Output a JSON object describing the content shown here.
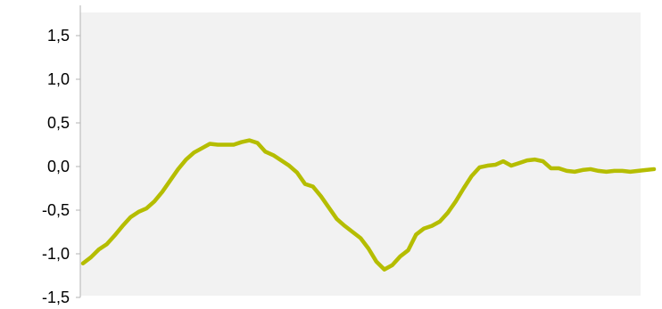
{
  "chart_data": {
    "type": "line",
    "title": "",
    "xlabel": "",
    "ylabel": "",
    "ylim": [
      -1.5,
      1.5
    ],
    "yticks": [
      -1.5,
      -1.0,
      -0.5,
      0.0,
      0.5,
      1.0,
      1.5
    ],
    "ytick_labels": [
      "-1,5",
      "-1,0",
      "-0,5",
      "0,0",
      "0,5",
      "1,0",
      "1,5"
    ],
    "grid": false,
    "legend": "none",
    "plot_background": "#f2f2f2",
    "series": [
      {
        "color": "#b5bd00",
        "x": [
          0,
          1,
          2,
          3,
          4,
          5,
          6,
          7,
          8,
          9,
          10,
          11,
          12,
          13,
          14,
          15,
          16,
          17,
          18,
          19,
          20,
          21,
          22,
          23,
          24,
          25,
          26,
          27,
          28,
          29,
          30,
          31,
          32,
          33,
          34,
          35,
          36,
          37,
          38,
          39,
          40,
          41,
          42,
          43,
          44,
          45,
          46,
          47,
          48,
          49,
          50,
          51,
          52,
          53,
          54,
          55,
          56,
          57,
          58,
          59,
          60,
          61,
          62,
          63,
          64,
          65,
          66,
          67,
          68,
          69,
          70,
          71,
          72
        ],
        "values": [
          -1.11,
          -1.04,
          -0.95,
          -0.89,
          -0.79,
          -0.68,
          -0.58,
          -0.52,
          -0.48,
          -0.4,
          -0.29,
          -0.16,
          -0.03,
          0.08,
          0.16,
          0.21,
          0.26,
          0.25,
          0.25,
          0.25,
          0.28,
          0.3,
          0.27,
          0.17,
          0.13,
          0.07,
          0.01,
          -0.07,
          -0.2,
          -0.23,
          -0.34,
          -0.47,
          -0.6,
          -0.68,
          -0.75,
          -0.82,
          -0.94,
          -1.09,
          -1.18,
          -1.13,
          -1.03,
          -0.96,
          -0.78,
          -0.71,
          -0.68,
          -0.63,
          -0.53,
          -0.4,
          -0.25,
          -0.11,
          -0.01,
          0.01,
          0.02,
          0.06,
          0.01,
          0.04,
          0.07,
          0.08,
          0.06,
          -0.02,
          -0.02,
          -0.05,
          -0.06,
          -0.04,
          -0.03,
          -0.05,
          -0.06,
          -0.05,
          -0.05,
          -0.06,
          -0.05,
          -0.04,
          -0.03
        ]
      }
    ]
  }
}
